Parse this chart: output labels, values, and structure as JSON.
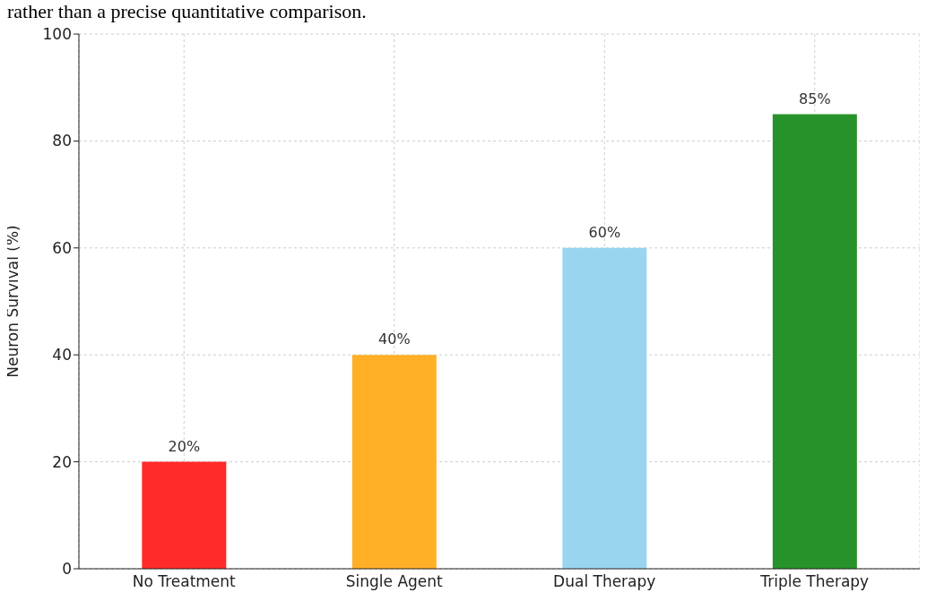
{
  "chart_data": {
    "type": "bar",
    "ylabel": "Neuron Survival (%)",
    "annotations": [
      "rather than a precise quantitative comparison."
    ],
    "categories": [
      "No Treatment",
      "Single Agent",
      "Dual Therapy",
      "Triple Therapy"
    ],
    "values": [
      20,
      40,
      60,
      85
    ],
    "colors": [
      "#ff2a2a",
      "#ffb027",
      "#9ad5ef",
      "#27922a"
    ],
    "value_labels": [
      "20%",
      "40%",
      "60%",
      "85%"
    ],
    "ylim": [
      0,
      100
    ],
    "yticks": [
      0,
      20,
      40,
      60,
      80,
      100
    ],
    "grid": true
  }
}
